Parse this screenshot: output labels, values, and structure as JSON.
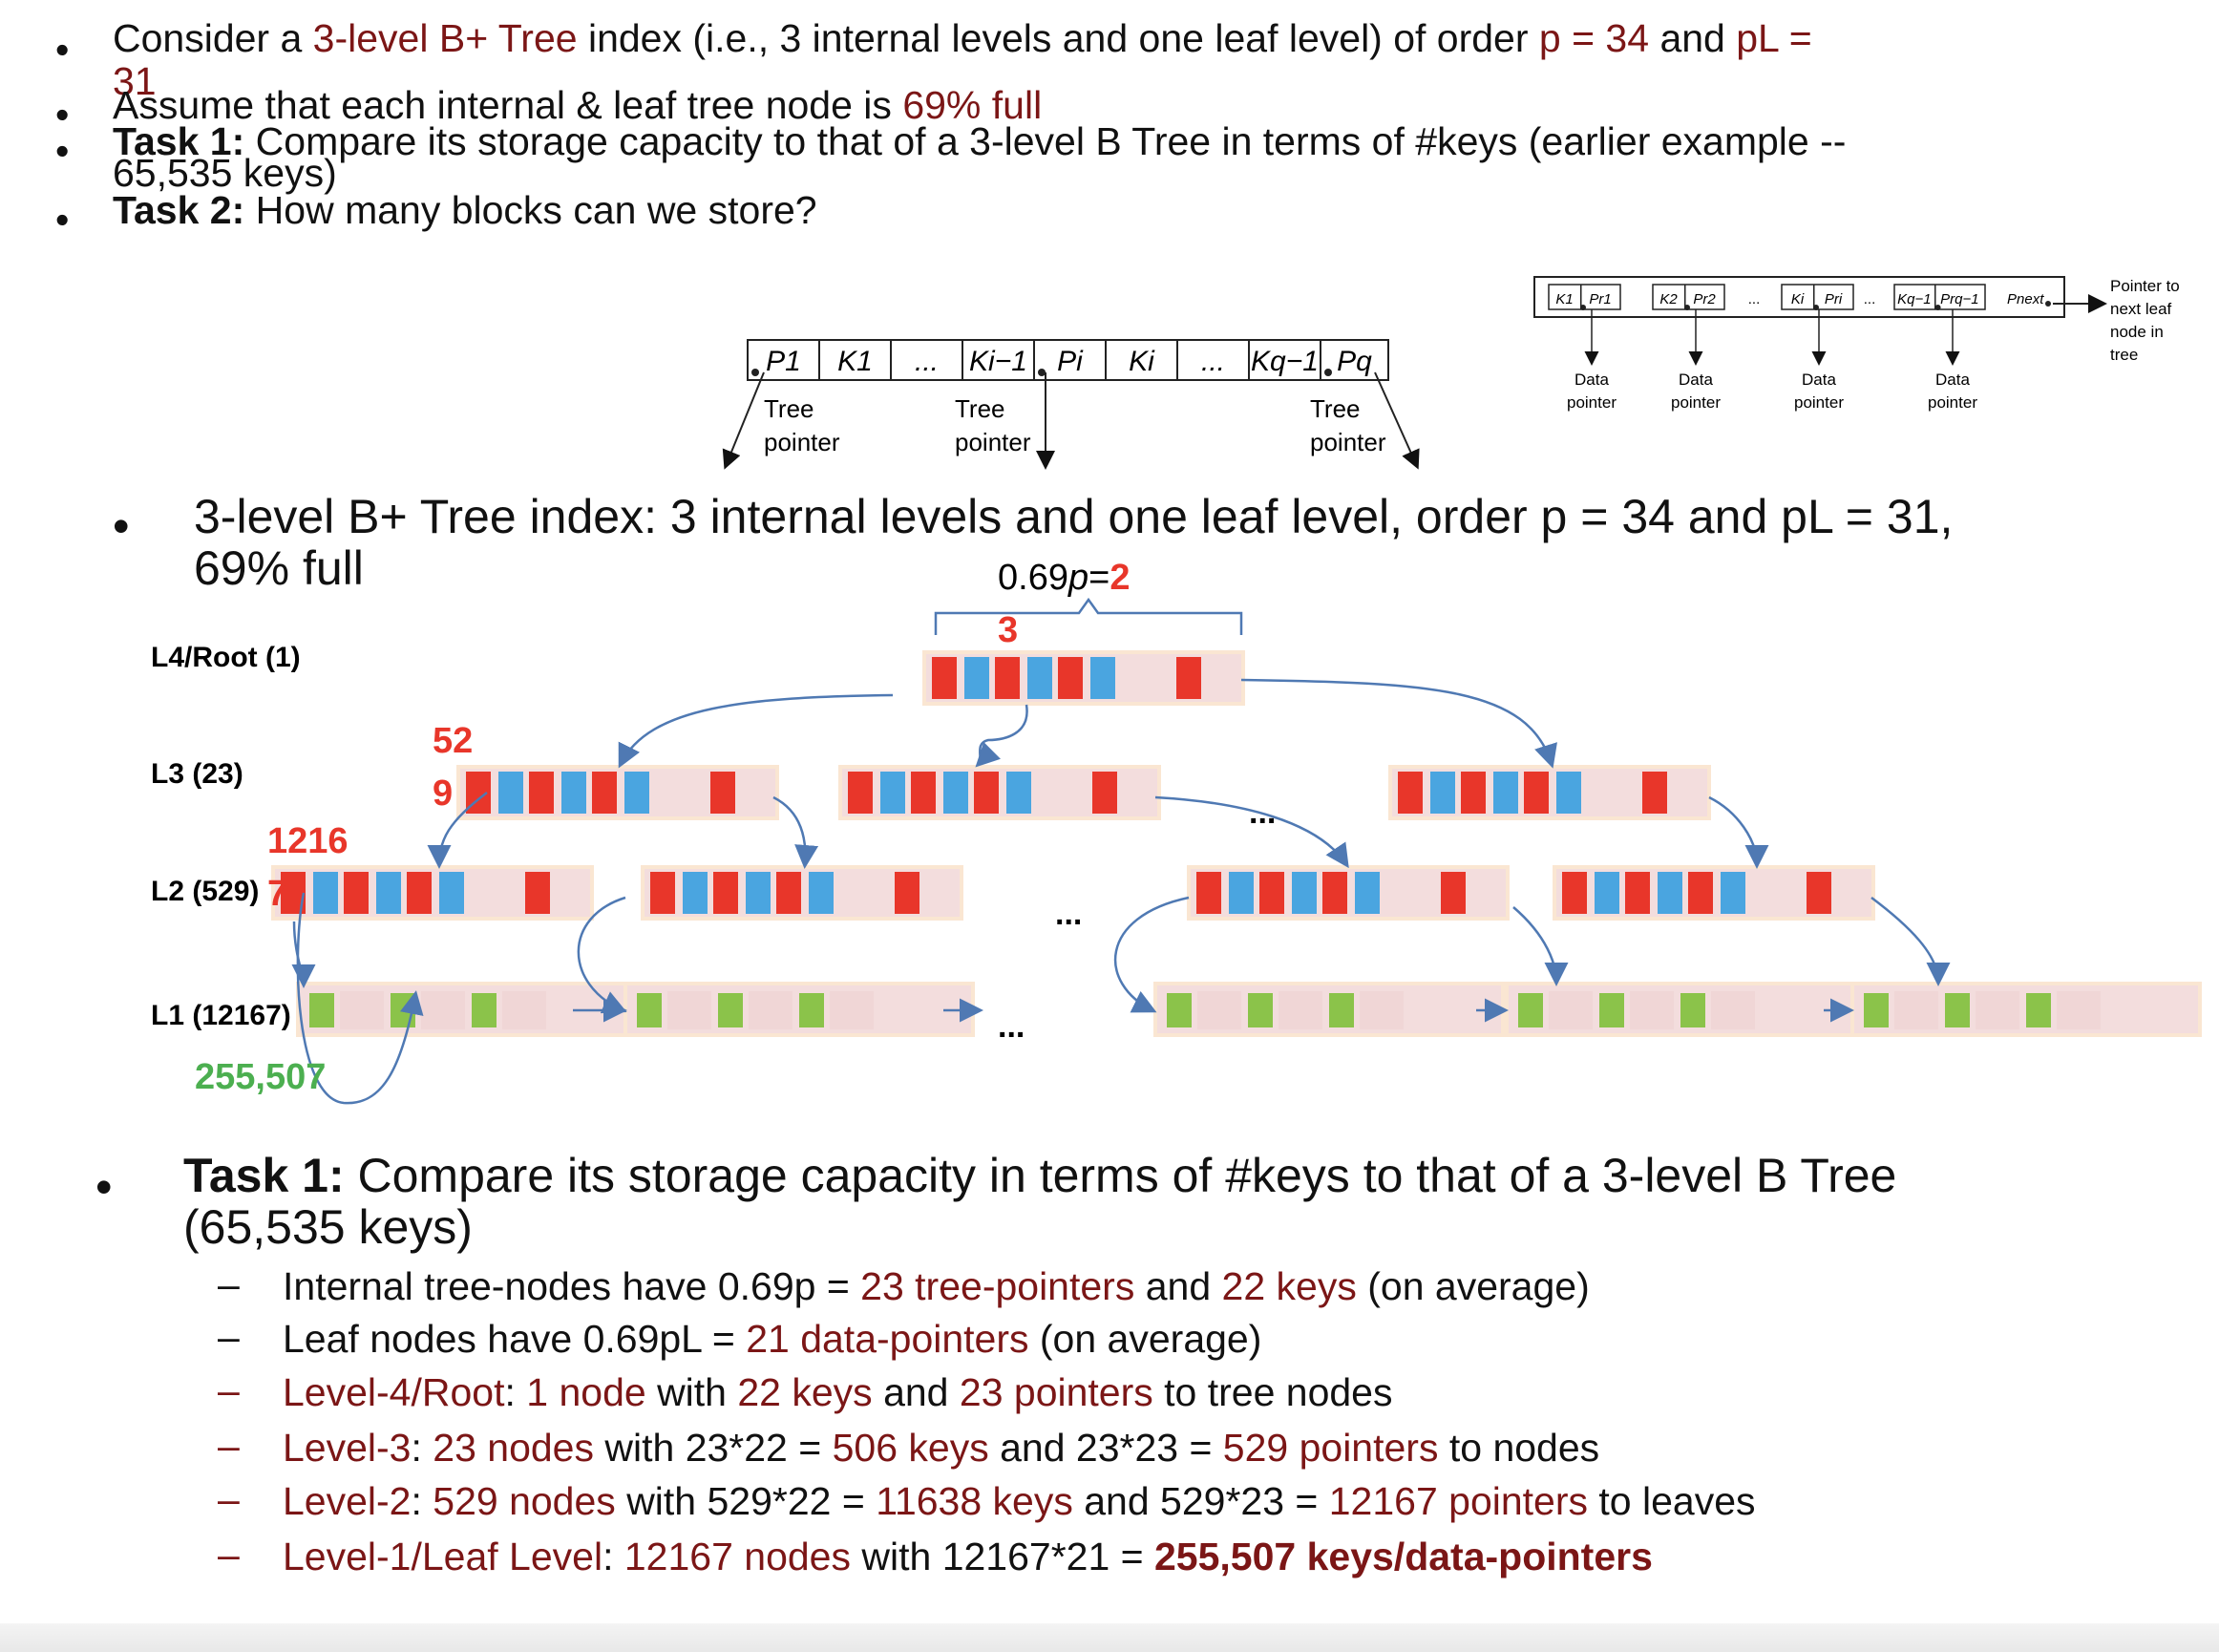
{
  "intro": [
    {
      "parts": [
        {
          "t": "Consider a "
        },
        {
          "t": "3-level B+ Tree",
          "c": "dk"
        },
        {
          "t": " index (i.e., 3 internal levels and one leaf level) of order "
        },
        {
          "t": "p = 34",
          "c": "dk"
        },
        {
          "t": " and "
        },
        {
          "t": "pL =",
          "c": "dk"
        }
      ],
      "line2": [
        {
          "t": "31",
          "c": "dk"
        }
      ]
    },
    {
      "parts": [
        {
          "t": "Assume that each internal & leaf tree node is "
        },
        {
          "t": "69% full",
          "c": "dk"
        }
      ]
    },
    {
      "parts": [
        {
          "t": "Task 1:",
          "b": true
        },
        {
          "t": " Compare its storage capacity to that of a 3-level B Tree in terms of #keys (earlier example --"
        }
      ],
      "line2": [
        {
          "t": "65,535 keys)"
        }
      ]
    },
    {
      "parts": [
        {
          "t": "Task 2:",
          "b": true
        },
        {
          "t": " How many blocks can we store?"
        }
      ]
    }
  ],
  "internal_node_fig": {
    "cells": [
      "P1",
      "K1",
      "...",
      "Ki−1",
      "Pi",
      "Ki",
      "...",
      "Kq−1",
      "Pq"
    ],
    "labels": [
      "Tree",
      "pointer",
      "Tree",
      "pointer",
      "Tree",
      "pointer"
    ]
  },
  "leaf_node_fig": {
    "cells": [
      "K1",
      "Pr1",
      "K2",
      "Pr2",
      "...",
      "Ki",
      "Pri",
      "...",
      "Kq−1",
      "Prq−1",
      "Pnext"
    ],
    "data_label_1": "Data",
    "data_label_2": "pointer",
    "next_label": [
      "Pointer to",
      "next leaf",
      "node in",
      "tree"
    ]
  },
  "heading2": {
    "line1": "3-level B+ Tree index: 3 internal levels and one leaf level, order p = 34 and pL = 31,",
    "line2": "69% full"
  },
  "diagram": {
    "p_label_a": "0.69",
    "p_label_b": "p",
    "p_label_c": "=",
    "p_label_d": "2",
    "p_label_e": "3",
    "levels": [
      "L4/Root (1)",
      "L3 (23)",
      "L2 (529)",
      "L1 (12167)"
    ],
    "count_l3_a": "52",
    "count_l3_b": "9",
    "count_l2_a": "1216",
    "count_l2_b": "7",
    "count_l1": "255,507",
    "ellipsis": "...",
    "colors": {
      "key": "#e8362a",
      "ptr": "#4aa5e0",
      "leaf": "#8bc34a",
      "node_bg": "#f3dddd",
      "node_border": "#fae6d2",
      "arrow": "#4f79b3"
    }
  },
  "task1": {
    "title_bold": "Task 1:",
    "title_rest": " Compare its storage capacity in terms of #keys to that of a 3-level B Tree",
    "title_line2": "(65,535 keys)",
    "items": [
      [
        {
          "t": "Internal tree-nodes have 0.69p = "
        },
        {
          "t": "23 tree-pointers",
          "c": "dk"
        },
        {
          "t": " and "
        },
        {
          "t": "22 keys",
          "c": "dk"
        },
        {
          "t": " (on average)"
        }
      ],
      [
        {
          "t": "Leaf nodes have 0.69pL =  "
        },
        {
          "t": "21 data-pointers",
          "c": "dk"
        },
        {
          "t": " (on average)"
        }
      ],
      [
        {
          "t": "Level-4/Root",
          "c": "dk"
        },
        {
          "t": ": "
        },
        {
          "t": "1 node",
          "c": "dk"
        },
        {
          "t": " with "
        },
        {
          "t": "22 keys",
          "c": "dk"
        },
        {
          "t": " and "
        },
        {
          "t": "23 pointers",
          "c": "dk"
        },
        {
          "t": " to tree nodes"
        }
      ],
      [
        {
          "t": "Level-3",
          "c": "dk"
        },
        {
          "t": ": "
        },
        {
          "t": "23 nodes",
          "c": "dk"
        },
        {
          "t": " with 23*22 = "
        },
        {
          "t": "506 keys",
          "c": "dk"
        },
        {
          "t": " and 23*23 = "
        },
        {
          "t": "529 pointers",
          "c": "dk"
        },
        {
          "t": " to nodes"
        }
      ],
      [
        {
          "t": "Level-2",
          "c": "dk"
        },
        {
          "t": ": "
        },
        {
          "t": "529 nodes",
          "c": "dk"
        },
        {
          "t": " with 529*22 = "
        },
        {
          "t": "11638 keys",
          "c": "dk"
        },
        {
          "t": " and 529*23 = "
        },
        {
          "t": "12167 pointers",
          "c": "dk"
        },
        {
          "t": " to leaves"
        }
      ],
      [
        {
          "t": "Level-1/Leaf Level",
          "c": "dk"
        },
        {
          "t": ": "
        },
        {
          "t": "12167 nodes",
          "c": "dk"
        },
        {
          "t": " with 12167*21 = "
        },
        {
          "t": "255,507 keys/data-pointers",
          "c": "dk",
          "b": true
        }
      ]
    ],
    "bullet": "•",
    "dash": "–"
  }
}
